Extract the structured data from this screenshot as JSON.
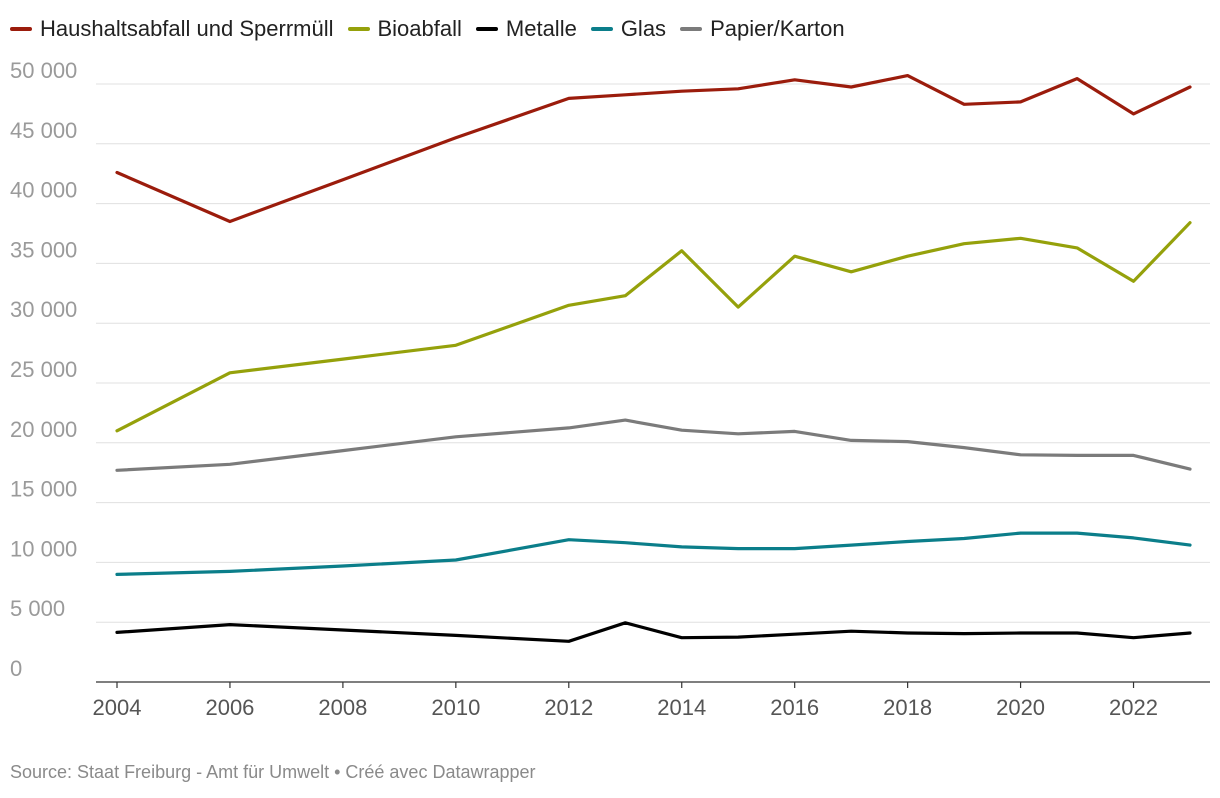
{
  "chart_data": {
    "type": "line",
    "x": [
      2004,
      2006,
      2008,
      2010,
      2012,
      2013,
      2014,
      2015,
      2016,
      2017,
      2018,
      2019,
      2020,
      2021,
      2022,
      2023
    ],
    "series": [
      {
        "name": "Haushaltsabfall und Sperrmüll",
        "color": "#9b1c0c",
        "values": [
          42600,
          38500,
          42000,
          45500,
          48800,
          49100,
          49400,
          49600,
          50350,
          49750,
          50700,
          48300,
          48500,
          50450,
          47500,
          49750
        ]
      },
      {
        "name": "Bioabfall",
        "color": "#95a10b",
        "values": [
          21000,
          25850,
          27000,
          28150,
          31500,
          32300,
          36050,
          31350,
          35600,
          34300,
          35600,
          36650,
          37100,
          36300,
          33500,
          38400
        ]
      },
      {
        "name": "Metalle",
        "color": "#000000",
        "values": [
          4150,
          4800,
          4350,
          3900,
          3400,
          4950,
          3700,
          3750,
          4000,
          4250,
          4100,
          4050,
          4100,
          4100,
          3700,
          4100
        ]
      },
      {
        "name": "Glas",
        "color": "#0b7e8a",
        "values": [
          9000,
          9250,
          9700,
          10200,
          11900,
          11650,
          11300,
          11150,
          11150,
          11450,
          11750,
          12000,
          12450,
          12450,
          12050,
          11450
        ]
      },
      {
        "name": "Papier/Karton",
        "color": "#7b7b7b",
        "values": [
          17700,
          18200,
          19350,
          20500,
          21250,
          21900,
          21050,
          20750,
          20950,
          20200,
          20100,
          19600,
          19000,
          18950,
          18950,
          17800
        ]
      }
    ],
    "x_ticks": [
      "2004",
      "2006",
      "2008",
      "2010",
      "2012",
      "2014",
      "2016",
      "2018",
      "2020",
      "2022"
    ],
    "y_ticks": [
      "0",
      "5 000",
      "10 000",
      "15 000",
      "20 000",
      "25 000",
      "30 000",
      "35 000",
      "40 000",
      "45 000",
      "50 000"
    ],
    "y_tick_values": [
      0,
      5000,
      10000,
      15000,
      20000,
      25000,
      30000,
      35000,
      40000,
      45000,
      50000
    ],
    "x_tick_values": [
      2004,
      2006,
      2008,
      2010,
      2012,
      2014,
      2016,
      2018,
      2020,
      2022
    ],
    "ylim": [
      0,
      50000
    ],
    "xlim": [
      2004,
      2023
    ],
    "title": "",
    "xlabel": "",
    "ylabel": "",
    "grid": true,
    "legend_position": "top-left"
  },
  "source_text": "Source: Staat Freiburg - Amt für Umwelt • Créé avec Datawrapper"
}
